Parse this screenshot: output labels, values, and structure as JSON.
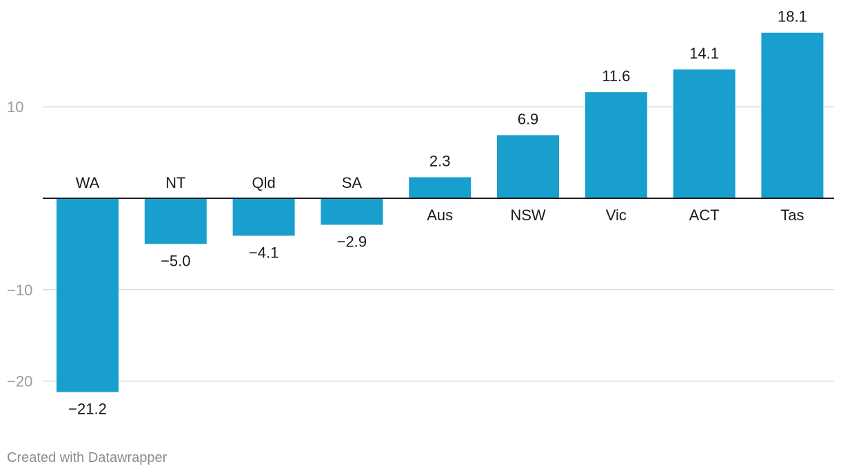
{
  "chart_data": {
    "type": "bar",
    "categories": [
      "WA",
      "NT",
      "Qld",
      "SA",
      "Aus",
      "NSW",
      "Vic",
      "ACT",
      "Tas"
    ],
    "values": [
      -21.2,
      -5.0,
      -4.1,
      -2.9,
      2.3,
      6.9,
      11.6,
      14.1,
      18.1
    ],
    "value_labels": [
      "−21.2",
      "−5.0",
      "−4.1",
      "−2.9",
      "2.3",
      "6.9",
      "11.6",
      "14.1",
      "18.1"
    ],
    "y_ticks": [
      10,
      -10,
      -20
    ],
    "y_tick_labels": [
      "10",
      "−10",
      "−20"
    ],
    "ylim": [
      -25,
      20
    ],
    "bar_color": "#199fcd",
    "grid": true,
    "title": "",
    "xlabel": "",
    "ylabel": ""
  },
  "footer": {
    "credit": "Created with Datawrapper"
  }
}
